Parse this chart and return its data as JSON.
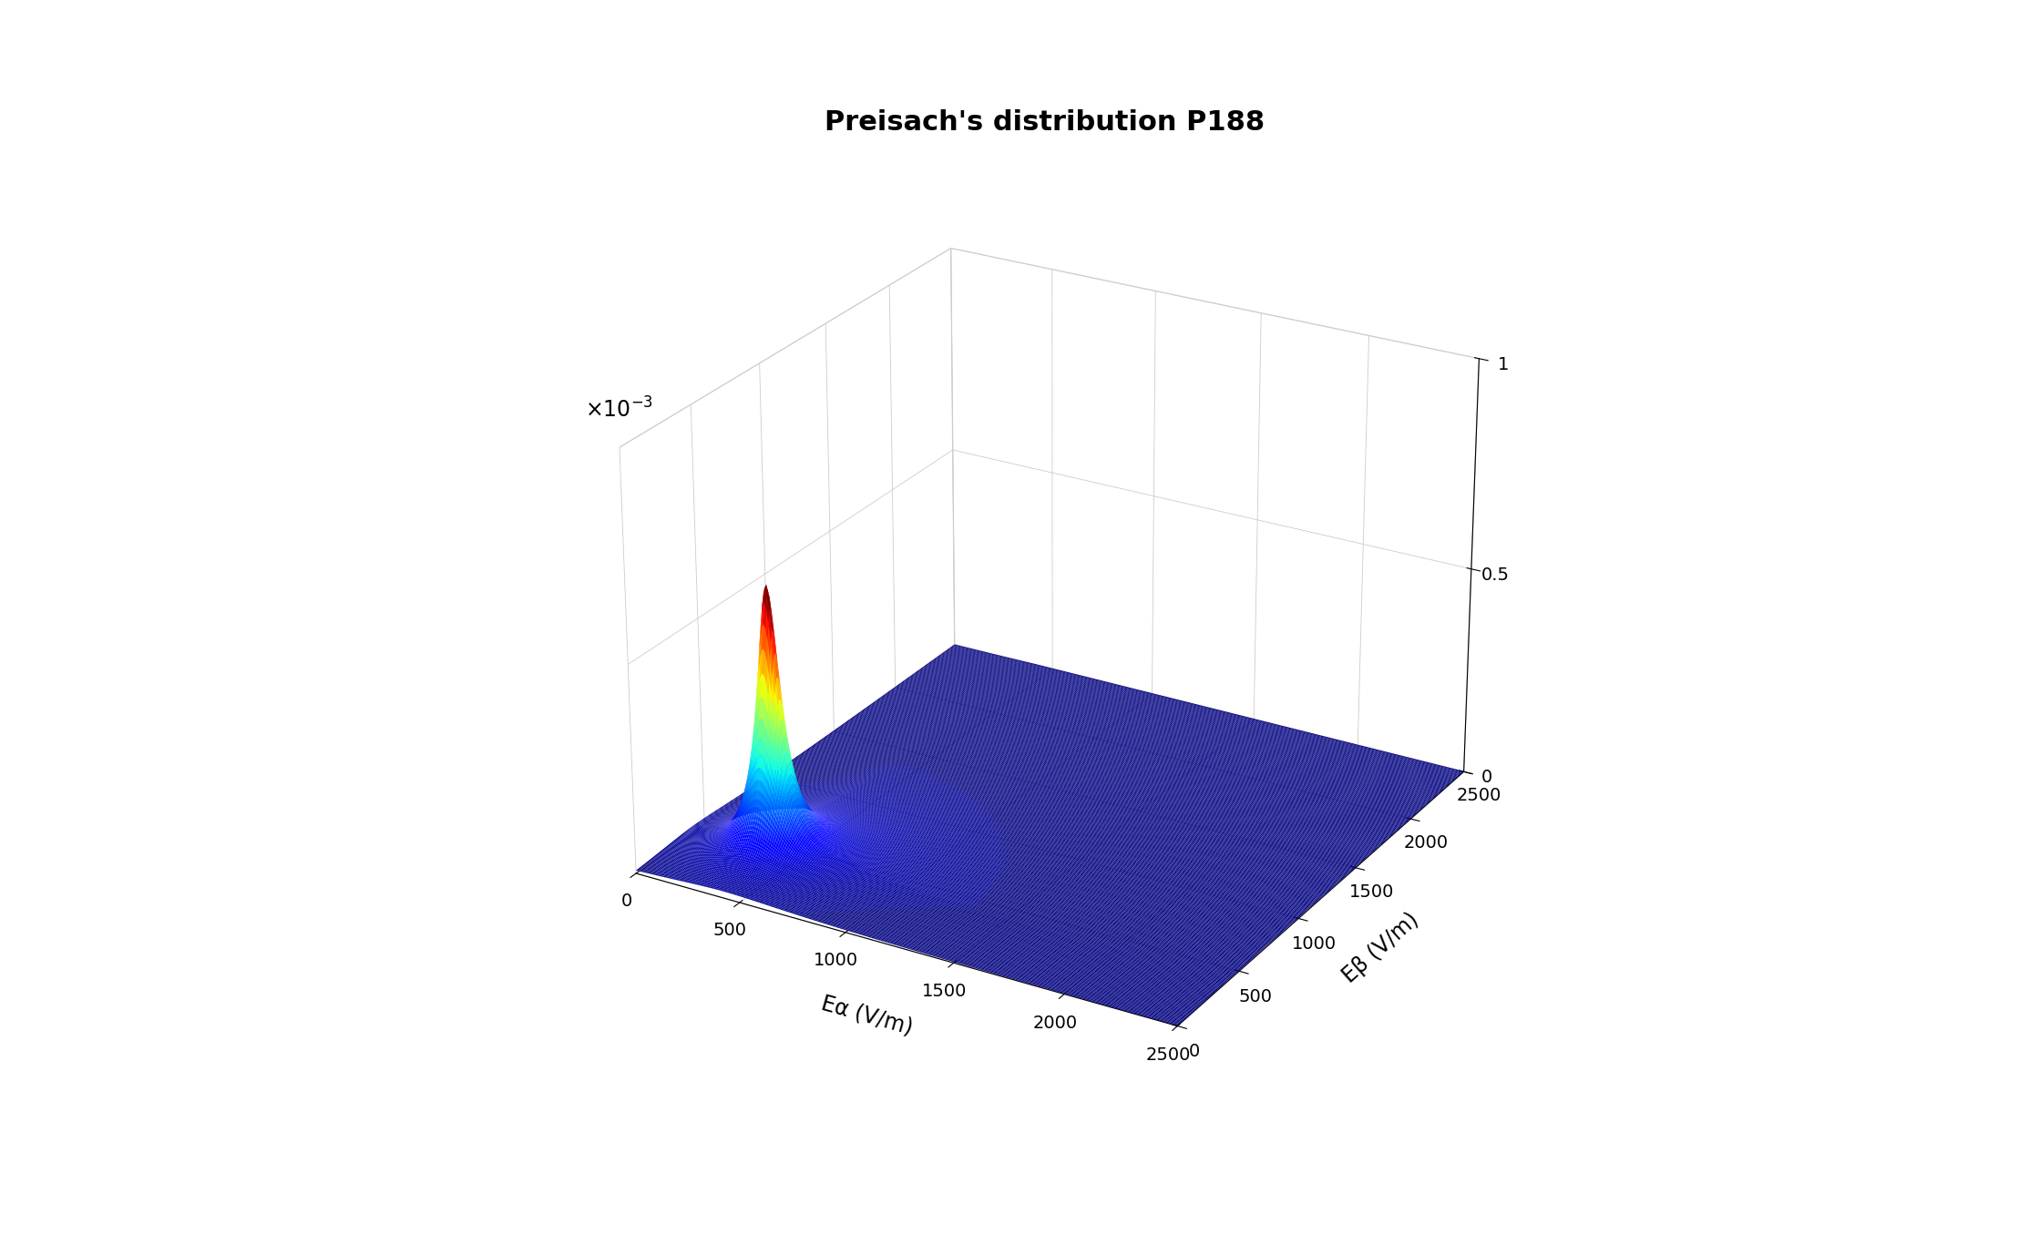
{
  "title": "Preisach's distribution P188",
  "xlabel": "Eα (V/m)",
  "ylabel": "Eβ (V/m)",
  "xrange": [
    0,
    2500
  ],
  "yrange": [
    0,
    2500
  ],
  "xticks": [
    0,
    500,
    1000,
    1500,
    2000,
    2500
  ],
  "yticks": [
    0,
    500,
    1000,
    1500,
    2000,
    2500
  ],
  "zticks": [
    0,
    0.5,
    1.0
  ],
  "ztick_labels": [
    "0",
    "0.5",
    "1"
  ],
  "peak_x": 400,
  "peak_y": 400,
  "peak_height": 0.00062,
  "gamma_x": 60,
  "gamma_y": 60,
  "tail_gamma_x": 350,
  "tail_gamma_y": 350,
  "background_color": "#ffffff",
  "grid_resolution": 300,
  "elev": 25,
  "azim": -60,
  "title_fontsize": 22,
  "label_fontsize": 17,
  "tick_fontsize": 14
}
